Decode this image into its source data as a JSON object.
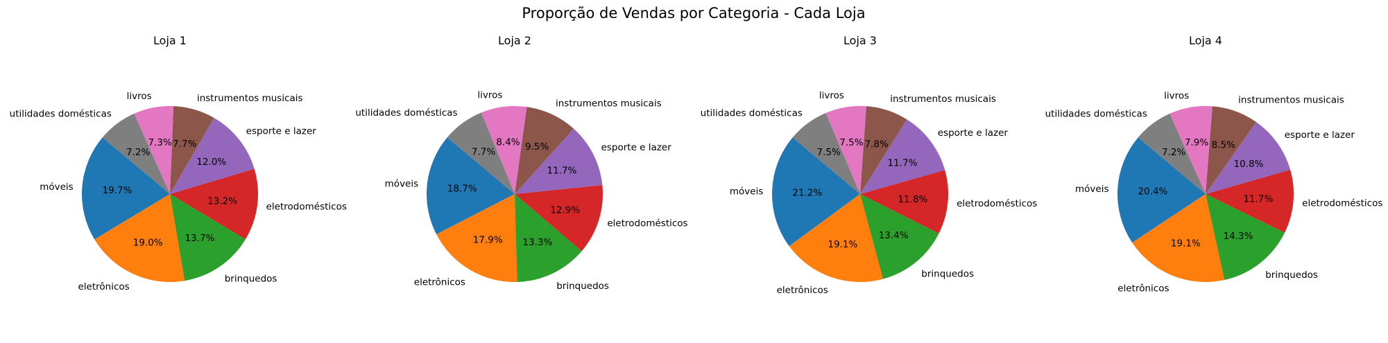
{
  "figure": {
    "title": "Proporção de Vendas por Categoria - Cada Loja"
  },
  "colors": {
    "móveis": "#1f77b4",
    "eletrônicos": "#ff7f0e",
    "brinquedos": "#2ca02c",
    "eletrodomésticos": "#d62728",
    "esporte e lazer": "#9467bd",
    "instrumentos musicais": "#8c564b",
    "livros": "#e377c2",
    "utilidades domésticas": "#7f7f7f"
  },
  "chart_data": [
    {
      "type": "pie",
      "title": "Loja 1",
      "start_angle_deg": 140,
      "direction": "counterclockwise",
      "slices": [
        {
          "label": "móveis",
          "value": 19.7
        },
        {
          "label": "eletrônicos",
          "value": 19.0
        },
        {
          "label": "brinquedos",
          "value": 13.7
        },
        {
          "label": "eletrodomésticos",
          "value": 13.2
        },
        {
          "label": "esporte e lazer",
          "value": 12.0
        },
        {
          "label": "instrumentos musicais",
          "value": 7.7
        },
        {
          "label": "livros",
          "value": 7.3
        },
        {
          "label": "utilidades domésticas",
          "value": 7.2
        }
      ]
    },
    {
      "type": "pie",
      "title": "Loja 2",
      "start_angle_deg": 140,
      "direction": "counterclockwise",
      "slices": [
        {
          "label": "móveis",
          "value": 18.7
        },
        {
          "label": "eletrônicos",
          "value": 17.9
        },
        {
          "label": "brinquedos",
          "value": 13.3
        },
        {
          "label": "eletrodomésticos",
          "value": 12.9
        },
        {
          "label": "esporte e lazer",
          "value": 11.7
        },
        {
          "label": "instrumentos musicais",
          "value": 9.5
        },
        {
          "label": "livros",
          "value": 8.4
        },
        {
          "label": "utilidades domésticas",
          "value": 7.7
        }
      ]
    },
    {
      "type": "pie",
      "title": "Loja 3",
      "start_angle_deg": 140,
      "direction": "counterclockwise",
      "slices": [
        {
          "label": "móveis",
          "value": 21.2
        },
        {
          "label": "eletrônicos",
          "value": 19.1
        },
        {
          "label": "brinquedos",
          "value": 13.4
        },
        {
          "label": "eletrodomésticos",
          "value": 11.8
        },
        {
          "label": "esporte e lazer",
          "value": 11.7
        },
        {
          "label": "instrumentos musicais",
          "value": 7.8
        },
        {
          "label": "livros",
          "value": 7.5
        },
        {
          "label": "utilidades domésticas",
          "value": 7.5
        }
      ]
    },
    {
      "type": "pie",
      "title": "Loja 4",
      "start_angle_deg": 140,
      "direction": "counterclockwise",
      "slices": [
        {
          "label": "móveis",
          "value": 20.4
        },
        {
          "label": "eletrônicos",
          "value": 19.1
        },
        {
          "label": "brinquedos",
          "value": 14.3
        },
        {
          "label": "eletrodomésticos",
          "value": 11.7
        },
        {
          "label": "esporte e lazer",
          "value": 10.8
        },
        {
          "label": "instrumentos musicais",
          "value": 8.5
        },
        {
          "label": "livros",
          "value": 7.9
        },
        {
          "label": "utilidades domésticas",
          "value": 7.2
        }
      ]
    }
  ]
}
